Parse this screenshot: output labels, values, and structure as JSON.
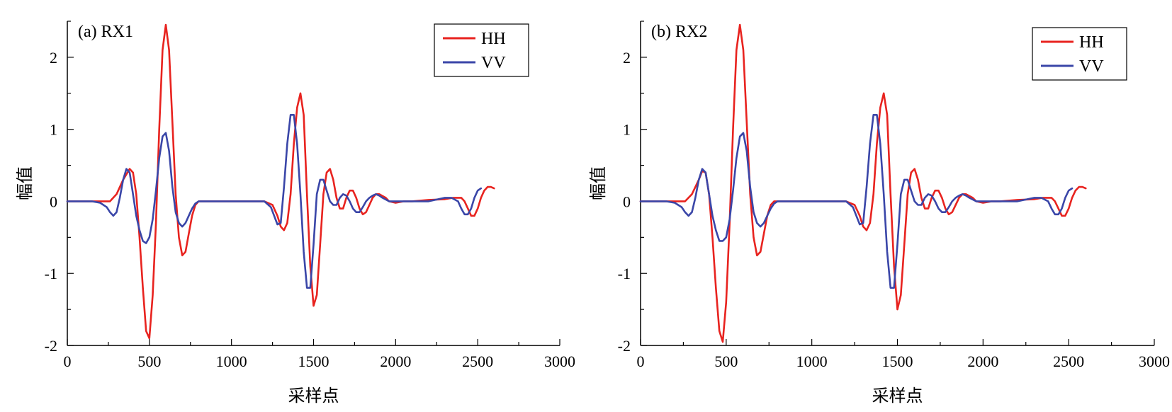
{
  "chart_data": [
    {
      "type": "line",
      "title": "(a) RX1",
      "xlabel": "采样点",
      "ylabel": "幅值",
      "xlim": [
        0,
        3000
      ],
      "ylim": [
        -2,
        2.5
      ],
      "xticks": [
        0,
        500,
        1000,
        1500,
        2000,
        2500,
        3000
      ],
      "xtick_labels": [
        "0",
        "500",
        "1000",
        "1500",
        "2000",
        "2500",
        "3000"
      ],
      "yticks": [
        -2,
        -1,
        0,
        1,
        2
      ],
      "ytick_labels": [
        "-2",
        "-1",
        "0",
        "1",
        "2"
      ],
      "grid": false,
      "legend_position": "top-right",
      "series": [
        {
          "name": "HH",
          "color": "#e8231f",
          "x": [
            0,
            200,
            260,
            300,
            340,
            380,
            400,
            420,
            440,
            460,
            480,
            500,
            520,
            540,
            560,
            580,
            600,
            620,
            640,
            660,
            680,
            700,
            720,
            740,
            760,
            780,
            800,
            850,
            900,
            1000,
            1100,
            1200,
            1250,
            1280,
            1300,
            1320,
            1340,
            1360,
            1380,
            1400,
            1420,
            1440,
            1460,
            1480,
            1500,
            1520,
            1540,
            1560,
            1580,
            1600,
            1620,
            1640,
            1660,
            1680,
            1700,
            1720,
            1740,
            1760,
            1780,
            1800,
            1820,
            1840,
            1860,
            1880,
            1900,
            1940,
            1960,
            2000,
            2050,
            2100,
            2200,
            2300,
            2350,
            2400,
            2420,
            2440,
            2460,
            2480,
            2500,
            2520,
            2540,
            2560,
            2580,
            2600
          ],
          "y": [
            0,
            0,
            0,
            0.1,
            0.3,
            0.45,
            0.4,
            0.1,
            -0.5,
            -1.2,
            -1.8,
            -1.9,
            -1.3,
            -0.3,
            1.0,
            2.1,
            2.45,
            2.1,
            1.1,
            0.1,
            -0.5,
            -0.75,
            -0.7,
            -0.45,
            -0.2,
            -0.05,
            0,
            0,
            0,
            0,
            0,
            0,
            -0.05,
            -0.2,
            -0.35,
            -0.4,
            -0.3,
            0.1,
            0.8,
            1.3,
            1.5,
            1.2,
            0.1,
            -0.9,
            -1.45,
            -1.3,
            -0.6,
            0.1,
            0.4,
            0.45,
            0.3,
            0.05,
            -0.1,
            -0.1,
            0.05,
            0.15,
            0.15,
            0.05,
            -0.1,
            -0.18,
            -0.15,
            -0.05,
            0.05,
            0.1,
            0.1,
            0.05,
            0,
            -0.02,
            0,
            0,
            0.02,
            0.03,
            0.05,
            0.05,
            0,
            -0.1,
            -0.2,
            -0.2,
            -0.1,
            0.05,
            0.15,
            0.2,
            0.2,
            0.18
          ]
        },
        {
          "name": "VV",
          "color": "#3a46a8",
          "x": [
            0,
            150,
            200,
            240,
            260,
            280,
            300,
            320,
            340,
            360,
            380,
            400,
            420,
            440,
            460,
            480,
            500,
            520,
            540,
            560,
            580,
            600,
            620,
            640,
            660,
            680,
            700,
            720,
            740,
            760,
            780,
            800,
            850,
            1000,
            1200,
            1240,
            1260,
            1280,
            1300,
            1320,
            1340,
            1360,
            1380,
            1400,
            1420,
            1440,
            1460,
            1480,
            1500,
            1520,
            1540,
            1560,
            1580,
            1600,
            1620,
            1640,
            1660,
            1680,
            1700,
            1720,
            1740,
            1760,
            1780,
            1800,
            1820,
            1840,
            1860,
            1880,
            1900,
            1920,
            1960,
            2000,
            2100,
            2200,
            2300,
            2340,
            2380,
            2400,
            2420,
            2440,
            2460,
            2480,
            2500,
            2520
          ],
          "y": [
            0,
            0,
            -0.02,
            -0.08,
            -0.15,
            -0.2,
            -0.15,
            0.05,
            0.3,
            0.45,
            0.4,
            0.1,
            -0.2,
            -0.4,
            -0.55,
            -0.58,
            -0.5,
            -0.25,
            0.15,
            0.6,
            0.9,
            0.95,
            0.7,
            0.2,
            -0.15,
            -0.3,
            -0.35,
            -0.3,
            -0.2,
            -0.1,
            -0.03,
            0,
            0,
            0,
            0,
            -0.08,
            -0.2,
            -0.32,
            -0.3,
            0.2,
            0.8,
            1.2,
            1.2,
            0.8,
            0.1,
            -0.7,
            -1.2,
            -1.2,
            -0.6,
            0.1,
            0.3,
            0.3,
            0.15,
            0,
            -0.05,
            -0.05,
            0.05,
            0.1,
            0.08,
            0,
            -0.1,
            -0.15,
            -0.15,
            -0.08,
            0,
            0.05,
            0.08,
            0.1,
            0.08,
            0.05,
            0,
            0,
            0,
            0,
            0.05,
            0.05,
            0,
            -0.1,
            -0.18,
            -0.18,
            -0.1,
            0.05,
            0.15,
            0.18
          ]
        }
      ]
    },
    {
      "type": "line",
      "title": "(b) RX2",
      "xlabel": "采样点",
      "ylabel": "幅值",
      "xlim": [
        0,
        3000
      ],
      "ylim": [
        -2,
        2.5
      ],
      "xticks": [
        0,
        500,
        1000,
        1500,
        2000,
        2500,
        3000
      ],
      "xtick_labels": [
        "0",
        "500",
        "1000",
        "1500",
        "2000",
        "2500",
        "3000"
      ],
      "yticks": [
        -2,
        -1,
        0,
        1,
        2
      ],
      "ytick_labels": [
        "-2",
        "-1",
        "0",
        "1",
        "2"
      ],
      "grid": false,
      "legend_position": "top-right",
      "series": [
        {
          "name": "HH",
          "color": "#e8231f",
          "x": [
            0,
            200,
            260,
            300,
            340,
            360,
            380,
            400,
            420,
            440,
            460,
            480,
            500,
            520,
            540,
            560,
            580,
            600,
            620,
            640,
            660,
            680,
            700,
            720,
            740,
            760,
            780,
            800,
            850,
            900,
            1000,
            1100,
            1200,
            1250,
            1280,
            1300,
            1320,
            1340,
            1360,
            1380,
            1400,
            1420,
            1440,
            1460,
            1480,
            1500,
            1520,
            1540,
            1560,
            1580,
            1600,
            1620,
            1640,
            1660,
            1680,
            1700,
            1720,
            1740,
            1760,
            1780,
            1800,
            1820,
            1840,
            1860,
            1880,
            1900,
            1940,
            1960,
            2000,
            2050,
            2100,
            2200,
            2300,
            2350,
            2400,
            2420,
            2440,
            2460,
            2480,
            2500,
            2520,
            2540,
            2560,
            2580,
            2600
          ],
          "y": [
            0,
            0,
            0,
            0.1,
            0.3,
            0.42,
            0.4,
            0.1,
            -0.5,
            -1.2,
            -1.8,
            -1.95,
            -1.4,
            -0.3,
            1.0,
            2.1,
            2.45,
            2.1,
            1.1,
            0.1,
            -0.5,
            -0.75,
            -0.7,
            -0.45,
            -0.2,
            -0.05,
            0,
            0,
            0,
            0,
            0,
            0,
            0,
            -0.05,
            -0.2,
            -0.35,
            -0.4,
            -0.3,
            0.1,
            0.8,
            1.3,
            1.5,
            1.2,
            0.1,
            -0.9,
            -1.5,
            -1.3,
            -0.6,
            0.1,
            0.4,
            0.45,
            0.3,
            0.05,
            -0.1,
            -0.1,
            0.05,
            0.15,
            0.15,
            0.05,
            -0.1,
            -0.18,
            -0.15,
            -0.05,
            0.05,
            0.1,
            0.1,
            0.05,
            0,
            -0.02,
            0,
            0,
            0.02,
            0.03,
            0.05,
            0.05,
            0,
            -0.1,
            -0.2,
            -0.2,
            -0.1,
            0.05,
            0.15,
            0.2,
            0.2,
            0.18
          ]
        },
        {
          "name": "VV",
          "color": "#3a46a8",
          "x": [
            0,
            150,
            200,
            240,
            260,
            280,
            300,
            320,
            340,
            360,
            380,
            400,
            420,
            440,
            460,
            480,
            500,
            520,
            540,
            560,
            580,
            600,
            620,
            640,
            660,
            680,
            700,
            720,
            740,
            760,
            780,
            800,
            850,
            1000,
            1200,
            1240,
            1260,
            1280,
            1300,
            1320,
            1340,
            1360,
            1380,
            1400,
            1420,
            1440,
            1460,
            1480,
            1500,
            1520,
            1540,
            1560,
            1580,
            1600,
            1620,
            1640,
            1660,
            1680,
            1700,
            1720,
            1740,
            1760,
            1780,
            1800,
            1820,
            1840,
            1860,
            1880,
            1900,
            1920,
            1960,
            2000,
            2100,
            2200,
            2300,
            2340,
            2380,
            2400,
            2420,
            2440,
            2460,
            2480,
            2500,
            2520
          ],
          "y": [
            0,
            0,
            -0.02,
            -0.08,
            -0.15,
            -0.2,
            -0.15,
            0.05,
            0.3,
            0.45,
            0.4,
            0.1,
            -0.2,
            -0.4,
            -0.55,
            -0.55,
            -0.5,
            -0.25,
            0.15,
            0.6,
            0.9,
            0.95,
            0.7,
            0.2,
            -0.15,
            -0.3,
            -0.35,
            -0.3,
            -0.2,
            -0.1,
            -0.03,
            0,
            0,
            0,
            0,
            -0.08,
            -0.2,
            -0.32,
            -0.3,
            0.2,
            0.8,
            1.2,
            1.2,
            0.8,
            0.1,
            -0.7,
            -1.2,
            -1.2,
            -0.6,
            0.1,
            0.3,
            0.3,
            0.15,
            0,
            -0.05,
            -0.05,
            0.05,
            0.1,
            0.08,
            0,
            -0.1,
            -0.15,
            -0.15,
            -0.08,
            0,
            0.05,
            0.08,
            0.1,
            0.08,
            0.05,
            0,
            0,
            0,
            0,
            0.05,
            0.05,
            0,
            -0.1,
            -0.18,
            -0.18,
            -0.1,
            0.05,
            0.15,
            0.18
          ]
        }
      ]
    }
  ]
}
